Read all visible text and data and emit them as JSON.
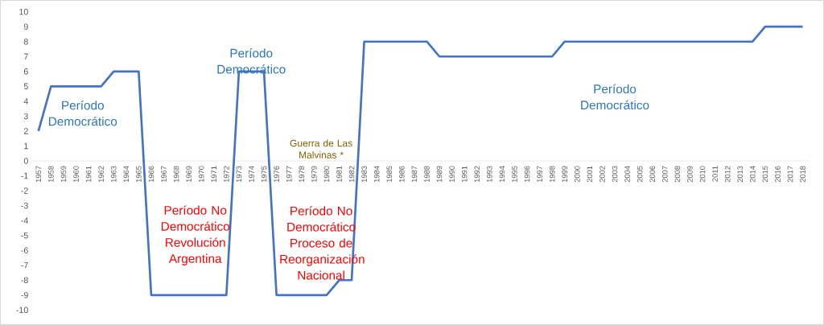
{
  "chart_data": {
    "type": "line",
    "categories": [
      "1957",
      "1958",
      "1959",
      "1960",
      "1961",
      "1962",
      "1963",
      "1964",
      "1965",
      "1966",
      "1967",
      "1968",
      "1969",
      "1970",
      "1971",
      "1972",
      "1973",
      "1974",
      "1975",
      "1976",
      "1977",
      "1978",
      "1979",
      "1980",
      "1981",
      "1982",
      "1983",
      "1984",
      "1985",
      "1986",
      "1987",
      "1988",
      "1989",
      "1990",
      "1991",
      "1992",
      "1993",
      "1994",
      "1995",
      "1996",
      "1997",
      "1998",
      "1999",
      "2000",
      "2001",
      "2002",
      "2003",
      "2004",
      "2005",
      "2006",
      "2007",
      "2008",
      "2009",
      "2010",
      "2011",
      "2012",
      "2013",
      "2014",
      "2015",
      "2016",
      "2017",
      "2018"
    ],
    "series": [
      {
        "color": "#4472c4",
        "values": [
          2,
          5,
          5,
          5,
          5,
          5,
          6,
          6,
          6,
          -9,
          -9,
          -9,
          -9,
          -9,
          -9,
          -9,
          6,
          6,
          6,
          -9,
          -9,
          -9,
          -9,
          -9,
          -8,
          -8,
          8,
          8,
          8,
          8,
          8,
          8,
          7,
          7,
          7,
          7,
          7,
          7,
          7,
          7,
          7,
          7,
          8,
          8,
          8,
          8,
          8,
          8,
          8,
          8,
          8,
          8,
          8,
          8,
          8,
          8,
          8,
          8,
          9,
          9,
          9,
          9
        ]
      }
    ],
    "ylim": [
      -10,
      10
    ],
    "yticks": [
      -10,
      -9,
      -8,
      -7,
      -6,
      -5,
      -4,
      -3,
      -2,
      -1,
      0,
      1,
      2,
      3,
      4,
      5,
      6,
      7,
      8,
      9,
      10
    ],
    "grid": false,
    "marker": "none",
    "line_style": "solid",
    "annotations": [
      "Período Democrático",
      "Período Democrático",
      "Guerra de Las Malvinas *",
      "Período No Democrático Revolución Argentina",
      "Período No Democrático Proceso de Reorganización Nacional",
      "Período Democrático"
    ]
  }
}
